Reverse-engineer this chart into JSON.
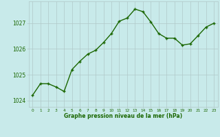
{
  "x": [
    0,
    1,
    2,
    3,
    4,
    5,
    6,
    7,
    8,
    9,
    10,
    11,
    12,
    13,
    14,
    15,
    16,
    17,
    18,
    19,
    20,
    21,
    22,
    23
  ],
  "y": [
    1024.2,
    1024.65,
    1024.65,
    1024.52,
    1024.35,
    1025.2,
    1025.52,
    1025.8,
    1025.95,
    1026.25,
    1026.6,
    1027.08,
    1027.2,
    1027.55,
    1027.45,
    1027.05,
    1026.6,
    1026.42,
    1026.42,
    1026.15,
    1026.2,
    1026.52,
    1026.85,
    1027.0
  ],
  "line_color": "#1a6600",
  "marker_color": "#1a6600",
  "bg_color": "#c8eaea",
  "grid_color": "#b0c8c8",
  "xlabel": "Graphe pression niveau de la mer (hPa)",
  "xlabel_color": "#1a6600",
  "tick_color": "#1a6600",
  "ylim": [
    1023.75,
    1027.85
  ],
  "yticks": [
    1024,
    1025,
    1026,
    1027
  ],
  "xlim": [
    -0.5,
    23.5
  ],
  "xticks": [
    0,
    1,
    2,
    3,
    4,
    5,
    6,
    7,
    8,
    9,
    10,
    11,
    12,
    13,
    14,
    15,
    16,
    17,
    18,
    19,
    20,
    21,
    22,
    23
  ],
  "xtick_labels": [
    "0",
    "1",
    "2",
    "3",
    "4",
    "5",
    "6",
    "7",
    "8",
    "9",
    "10",
    "11",
    "12",
    "13",
    "14",
    "15",
    "16",
    "17",
    "18",
    "19",
    "20",
    "21",
    "22",
    "23"
  ],
  "linewidth": 1.0,
  "markersize": 3.0
}
